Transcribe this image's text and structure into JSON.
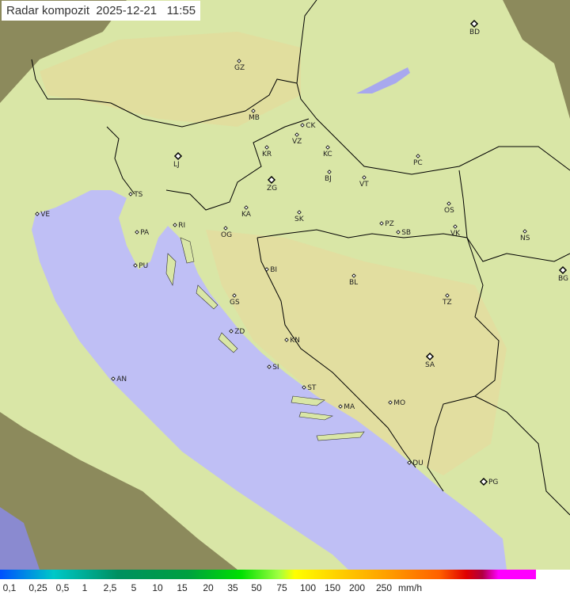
{
  "title": {
    "label": "Radar kompozit",
    "date": "2025-12-21",
    "time": "11:55"
  },
  "colors": {
    "sea": "#bfbff5",
    "land": "#d8e8a8",
    "outside": "#8c8a5c",
    "border": "#000000"
  },
  "cities": [
    {
      "code": "BD",
      "major": true
    },
    {
      "code": "GZ"
    },
    {
      "code": "MB"
    },
    {
      "code": "CK"
    },
    {
      "code": "VZ"
    },
    {
      "code": "KR"
    },
    {
      "code": "KC"
    },
    {
      "code": "LJ",
      "major": true
    },
    {
      "code": "PC"
    },
    {
      "code": "ZG",
      "major": true
    },
    {
      "code": "BJ"
    },
    {
      "code": "VT"
    },
    {
      "code": "TS"
    },
    {
      "code": "VE"
    },
    {
      "code": "KA"
    },
    {
      "code": "SK"
    },
    {
      "code": "OS"
    },
    {
      "code": "RI"
    },
    {
      "code": "PA"
    },
    {
      "code": "OG"
    },
    {
      "code": "PZ"
    },
    {
      "code": "SB"
    },
    {
      "code": "VK"
    },
    {
      "code": "NS"
    },
    {
      "code": "PU"
    },
    {
      "code": "BG",
      "major": true
    },
    {
      "code": "BI"
    },
    {
      "code": "BL"
    },
    {
      "code": "GS"
    },
    {
      "code": "TZ"
    },
    {
      "code": "ZD"
    },
    {
      "code": "KN"
    },
    {
      "code": "SA",
      "major": true
    },
    {
      "code": "SI"
    },
    {
      "code": "AN"
    },
    {
      "code": "ST"
    },
    {
      "code": "MO"
    },
    {
      "code": "MA"
    },
    {
      "code": "DU"
    },
    {
      "code": "PG",
      "major": true
    }
  ],
  "legend": {
    "unit": "mm/h",
    "labels": [
      "0,1",
      "0,25",
      "0,5",
      "1",
      "2,5",
      "5",
      "10",
      "15",
      "20",
      "35",
      "50",
      "75",
      "100",
      "150",
      "200",
      "250"
    ]
  }
}
